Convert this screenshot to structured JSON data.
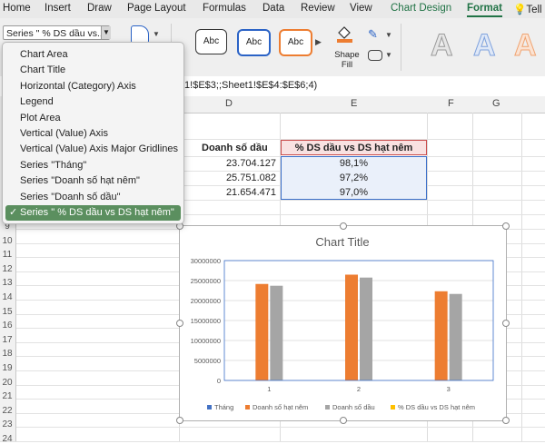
{
  "ribbon": {
    "tabs": [
      "Home",
      "Insert",
      "Draw",
      "Page Layout",
      "Formulas",
      "Data",
      "Review",
      "View",
      "Chart Design",
      "Format",
      "Tell"
    ],
    "chart_element_select": "Series \" % DS dầu vs...",
    "shape_styles": [
      "Abc",
      "Abc",
      "Abc"
    ],
    "shape_fill_label": "Shape\nFill",
    "shape_fill_line1": "Shape",
    "shape_fill_line2": "Fill",
    "wordart": [
      "A",
      "A",
      "A"
    ]
  },
  "formula_bar": {
    "text": "t1!$E$3;;Sheet1!$E$4:$E$6;4)"
  },
  "columns": [
    "D",
    "E",
    "F",
    "G"
  ],
  "rows": [
    "9",
    "10",
    "11",
    "12",
    "13",
    "14",
    "15",
    "16",
    "17",
    "18",
    "19",
    "20",
    "21",
    "22",
    "23",
    "24"
  ],
  "table": {
    "headers": [
      "Doanh số dầu",
      "% DS dầu vs DS hạt nêm"
    ],
    "rows": [
      [
        "23.704.127",
        "98,1%"
      ],
      [
        "25.751.082",
        "97,2%"
      ],
      [
        "21.654.471",
        "97,0%"
      ]
    ]
  },
  "dropdown": {
    "items": [
      "Chart Area",
      "Chart Title",
      "Horizontal (Category) Axis",
      "Legend",
      "Plot Area",
      "Vertical (Value) Axis",
      "Vertical (Value) Axis Major Gridlines",
      "Series \"Tháng\"",
      "Series \"Doanh số hạt nêm\"",
      "Series \"Doanh số dầu\"",
      "Series \" % DS dầu vs DS hạt nêm\""
    ],
    "selected_index": 10,
    "check": "✓"
  },
  "colors": {
    "accent_green": "#217346",
    "series_thang": "#4472c4",
    "series_hat_nem": "#ed7d31",
    "series_dau": "#a5a5a5",
    "series_pct": "#ffc000"
  },
  "chart_data": {
    "type": "bar",
    "title": "Chart Title",
    "categories": [
      "1",
      "2",
      "3"
    ],
    "series": [
      {
        "name": "Tháng",
        "values": [
          1,
          2,
          3
        ]
      },
      {
        "name": "Doanh số hạt nêm",
        "values": [
          24150000,
          26480000,
          22320000
        ]
      },
      {
        "name": "Doanh số dầu",
        "values": [
          23704127,
          25751082,
          21654471
        ]
      },
      {
        "name": "% DS dầu vs DS hạt nêm",
        "values": [
          0.981,
          0.972,
          0.97
        ]
      }
    ],
    "yticks": [
      "30000000",
      "25000000",
      "20000000",
      "15000000",
      "10000000",
      "5000000",
      "0"
    ],
    "ylim": [
      0,
      30000000
    ],
    "legend": "bottom",
    "grid": true
  }
}
